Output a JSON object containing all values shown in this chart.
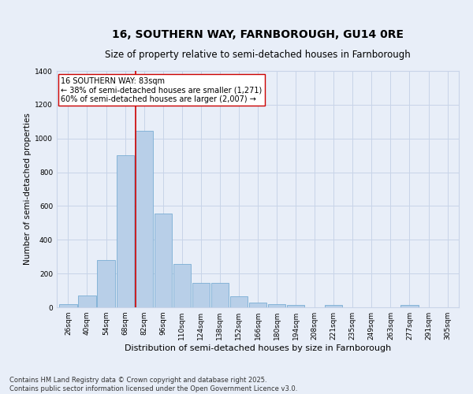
{
  "title": "16, SOUTHERN WAY, FARNBOROUGH, GU14 0RE",
  "subtitle": "Size of property relative to semi-detached houses in Farnborough",
  "xlabel": "Distribution of semi-detached houses by size in Farnborough",
  "ylabel": "Number of semi-detached properties",
  "bar_labels": [
    "26sqm",
    "40sqm",
    "54sqm",
    "68sqm",
    "82sqm",
    "96sqm",
    "110sqm",
    "124sqm",
    "138sqm",
    "152sqm",
    "166sqm",
    "180sqm",
    "194sqm",
    "208sqm",
    "221sqm",
    "235sqm",
    "249sqm",
    "263sqm",
    "277sqm",
    "291sqm",
    "305sqm"
  ],
  "bar_values": [
    20,
    70,
    280,
    900,
    1045,
    555,
    255,
    145,
    145,
    65,
    30,
    20,
    15,
    0,
    15,
    0,
    0,
    0,
    12,
    0,
    0
  ],
  "bar_color": "#b8cfe8",
  "bar_edgecolor": "#7aadd4",
  "highlight_bar_index": 4,
  "vline_color": "#cc0000",
  "annotation_text": "16 SOUTHERN WAY: 83sqm\n← 38% of semi-detached houses are smaller (1,271)\n60% of semi-detached houses are larger (2,007) →",
  "annotation_box_edgecolor": "#cc0000",
  "annotation_box_facecolor": "#ffffff",
  "ylim": [
    0,
    1400
  ],
  "yticks": [
    0,
    200,
    400,
    600,
    800,
    1000,
    1200,
    1400
  ],
  "grid_color": "#c8d4e8",
  "bg_color": "#e8eef8",
  "footnote": "Contains HM Land Registry data © Crown copyright and database right 2025.\nContains public sector information licensed under the Open Government Licence v3.0.",
  "title_fontsize": 10,
  "subtitle_fontsize": 8.5,
  "xlabel_fontsize": 8,
  "ylabel_fontsize": 7.5,
  "tick_fontsize": 6.5,
  "annotation_fontsize": 7,
  "footnote_fontsize": 6
}
